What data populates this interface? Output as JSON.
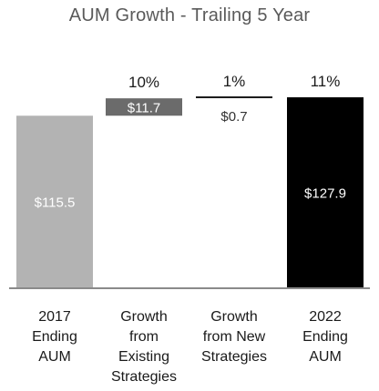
{
  "chart_data": {
    "type": "waterfall",
    "title": "AUM Growth - Trailing 5 Year",
    "xlabel": "",
    "ylabel": "",
    "grid": false,
    "categories": [
      [
        "2017",
        "Ending",
        "AUM"
      ],
      [
        "Growth",
        "from",
        "Existing",
        "Strategies"
      ],
      [
        "Growth",
        "from New",
        "Strategies"
      ],
      [
        "2022",
        "Ending",
        "AUM"
      ]
    ],
    "values": [
      115.5,
      11.7,
      0.7,
      127.9
    ],
    "value_labels": [
      "$115.5",
      "$11.7",
      "$0.7",
      "$127.9"
    ],
    "percent_labels": [
      "",
      "10%",
      "1%",
      "11%"
    ],
    "kinds": [
      "total",
      "increase",
      "increase",
      "total"
    ],
    "colors": [
      "#b3b3b3",
      "#6b6b6b",
      "#1a1a1a",
      "#000000"
    ],
    "ylim": [
      0,
      128.5
    ]
  }
}
